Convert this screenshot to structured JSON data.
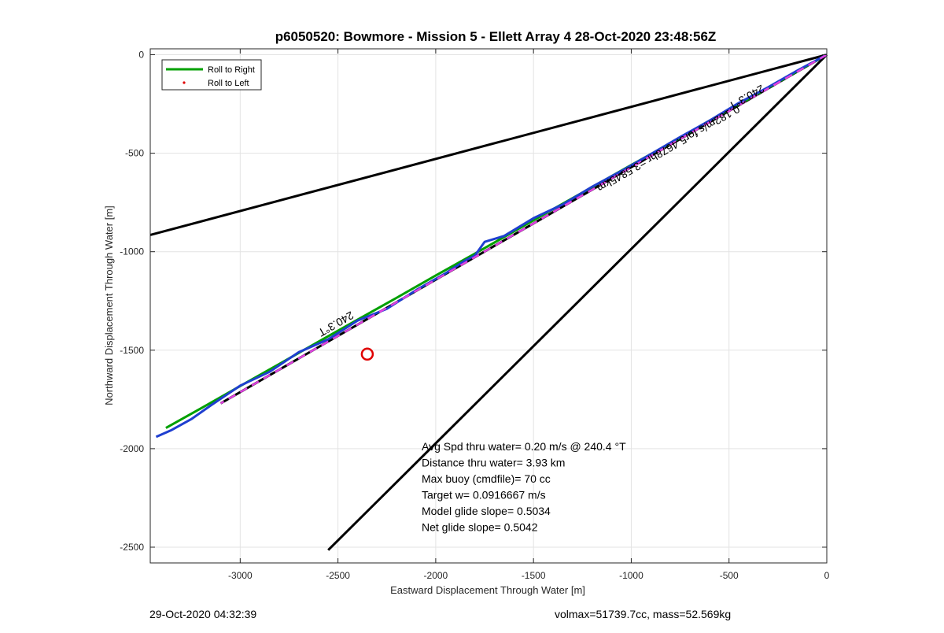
{
  "chart_data": {
    "type": "line",
    "title": "p6050520: Bowmore - Mission 5 - Ellett Array 4 28-Oct-2020 23:48:56Z",
    "xlabel": "Eastward Displacement Through Water [m]",
    "ylabel": "Northward Displacement Through Water [m]",
    "xlim": [
      -3460,
      0
    ],
    "ylim": [
      -2580,
      30
    ],
    "xticks": [
      -3000,
      -2500,
      -2000,
      -1500,
      -1000,
      -500,
      0
    ],
    "yticks": [
      0,
      -500,
      -1000,
      -1500,
      -2000,
      -2500
    ],
    "xtick_labels": [
      "-3000",
      "-2500",
      "-2000",
      "-1500",
      "-1000",
      "-500",
      "0"
    ],
    "ytick_labels": [
      "0",
      "-500",
      "-1000",
      "-1500",
      "-2000",
      "-2500"
    ],
    "grid": true,
    "legend_position": "top-left",
    "legend": [
      {
        "label": "Roll to Right",
        "color": "#00a000",
        "style": "line"
      },
      {
        "label": "Roll to Left",
        "color": "#e00000",
        "style": "dot"
      }
    ],
    "series": [
      {
        "name": "Roll to Right",
        "color": "#00a000",
        "x": [
          0,
          -200,
          -400,
          -600,
          -800,
          -1000,
          -1200,
          -1400,
          -1600,
          -1800,
          -2000,
          -2200,
          -2400,
          -2600,
          -2800,
          -3000,
          -3200,
          -3380
        ],
        "y": [
          0,
          -112,
          -225,
          -335,
          -450,
          -560,
          -672,
          -784,
          -897,
          -1010,
          -1121,
          -1234,
          -1345,
          -1457,
          -1570,
          -1682,
          -1795,
          -1895
        ]
      },
      {
        "name": "Roll to Left",
        "color": "#1f3fd0",
        "x": [
          0,
          -150,
          -300,
          -450,
          -600,
          -750,
          -900,
          -1050,
          -1200,
          -1350,
          -1500,
          -1650,
          -1750,
          -1800,
          -1850,
          -1950,
          -2100,
          -2250,
          -2400,
          -2550,
          -2700,
          -2850,
          -3000,
          -3150,
          -3250,
          -3350,
          -3430
        ],
        "y": [
          0,
          -80,
          -165,
          -245,
          -335,
          -418,
          -505,
          -590,
          -670,
          -760,
          -830,
          -920,
          -950,
          -1020,
          -1045,
          -1110,
          -1195,
          -1290,
          -1350,
          -1445,
          -1510,
          -1610,
          -1680,
          -1780,
          -1850,
          -1905,
          -1940
        ]
      }
    ],
    "reference_lines": [
      {
        "name": "bearing-line-upper",
        "color": "#000000",
        "x": [
          0,
          -3460
        ],
        "y": [
          0,
          -915
        ]
      },
      {
        "name": "bearing-line-lower",
        "color": "#000000",
        "x": [
          0,
          -2550
        ],
        "y": [
          0,
          -2515
        ]
      },
      {
        "name": "track-line",
        "color": "#000000",
        "dashed": false,
        "x": [
          0,
          -3100
        ],
        "y": [
          0,
          -1770
        ]
      }
    ],
    "markers": [
      {
        "name": "target-circle",
        "color": "#e00000",
        "x": -2350,
        "y": -1520
      }
    ],
    "annotations": [
      {
        "text": "240.3°T",
        "x": -2520,
        "y": -1350
      },
      {
        "text": "240.3°T",
        "x": -420,
        "y": -200
      },
      {
        "text": "0.182m/s for5.4678hr =3.5845km",
        "x": -820,
        "y": -460
      }
    ],
    "stats": [
      "Avg Spd thru water=  0.20 m/s @ 240.4 °T",
      "Distance thru water=  3.93 km",
      "Max buoy (cmdfile)= 70 cc",
      "Target w= 0.0916667 m/s",
      "Model glide slope= 0.5034",
      "Net glide slope= 0.5042"
    ]
  },
  "footer": {
    "timestamp": "29-Oct-2020 04:32:39",
    "volmax_mass": "volmax=51739.7cc, mass=52.569kg"
  }
}
